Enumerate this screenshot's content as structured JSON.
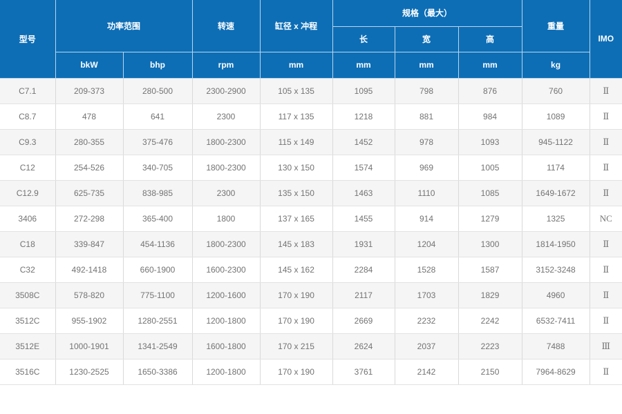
{
  "colors": {
    "header_bg": "#0d6eb6",
    "header_text": "#ffffff",
    "header_divider": "#bcd6ea",
    "row_alt_bg": "#f5f5f5",
    "row_bg": "#ffffff",
    "cell_border": "#d9d9d9",
    "body_text": "#737373"
  },
  "table": {
    "header": {
      "model_label": "型号",
      "power_range_label": "功率范围",
      "bkw_label": "bkW",
      "bhp_label": "bhp",
      "speed_label": "转速",
      "rpm_label": "rpm",
      "bore_stroke_label": "缸径 x 冲程",
      "bore_stroke_unit": "mm",
      "spec_max_label": "规格（最大）",
      "length_label": "长",
      "width_label": "宽",
      "height_label": "高",
      "length_unit": "mm",
      "width_unit": "mm",
      "height_unit": "mm",
      "weight_label": "重量",
      "weight_unit": "kg",
      "imo_label": "IMO"
    },
    "column_names": [
      "model-cell",
      "bkw-cell",
      "bhp-cell",
      "rpm-cell",
      "bore-stroke-cell",
      "length-cell",
      "width-cell",
      "height-cell",
      "weight-cell",
      "imo-cell"
    ],
    "rows": [
      [
        "C7.1",
        "209-373",
        "280-500",
        "2300-2900",
        "105 x 135",
        "1095",
        "798",
        "876",
        "760",
        "Ⅱ"
      ],
      [
        "C8.7",
        "478",
        "641",
        "2300",
        "117 x 135",
        "1218",
        "881",
        "984",
        "1089",
        "Ⅱ"
      ],
      [
        "C9.3",
        "280-355",
        "375-476",
        "1800-2300",
        "115 x 149",
        "1452",
        "978",
        "1093",
        "945-1122",
        "Ⅱ"
      ],
      [
        "C12",
        "254-526",
        "340-705",
        "1800-2300",
        "130 x 150",
        "1574",
        "969",
        "1005",
        "1174",
        "Ⅱ"
      ],
      [
        "C12.9",
        "625-735",
        "838-985",
        "2300",
        "135 x 150",
        "1463",
        "1110",
        "1085",
        "1649-1672",
        "Ⅱ"
      ],
      [
        "3406",
        "272-298",
        "365-400",
        "1800",
        "137 x 165",
        "1455",
        "914",
        "1279",
        "1325",
        "NC"
      ],
      [
        "C18",
        "339-847",
        "454-1136",
        "1800-2300",
        "145 x 183",
        "1931",
        "1204",
        "1300",
        "1814-1950",
        "Ⅱ"
      ],
      [
        "C32",
        "492-1418",
        "660-1900",
        "1600-2300",
        "145 x 162",
        "2284",
        "1528",
        "1587",
        "3152-3248",
        "Ⅱ"
      ],
      [
        "3508C",
        "578-820",
        "775-1100",
        "1200-1600",
        "170 x 190",
        "2117",
        "1703",
        "1829",
        "4960",
        "Ⅱ"
      ],
      [
        "3512C",
        "955-1902",
        "1280-2551",
        "1200-1800",
        "170 x 190",
        "2669",
        "2232",
        "2242",
        "6532-7411",
        "Ⅱ"
      ],
      [
        "3512E",
        "1000-1901",
        "1341-2549",
        "1600-1800",
        "170 x 215",
        "2624",
        "2037",
        "2223",
        "7488",
        "Ⅲ"
      ],
      [
        "3516C",
        "1230-2525",
        "1650-3386",
        "1200-1800",
        "170 x 190",
        "3761",
        "2142",
        "2150",
        "7964-8629",
        "Ⅱ"
      ]
    ]
  }
}
